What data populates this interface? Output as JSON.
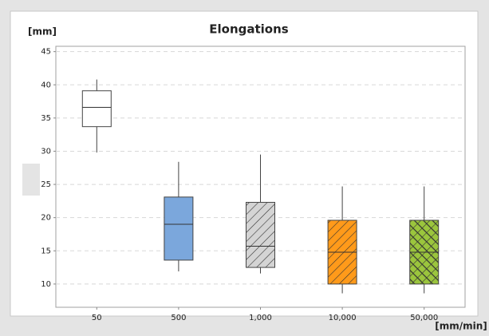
{
  "chart_data": {
    "type": "box",
    "title": "Elongations",
    "y_label": "[mm]",
    "x_label": "[mm/min]",
    "categories": [
      "50",
      "500",
      "1,000",
      "10,000",
      "50,000"
    ],
    "boxes": [
      {
        "min": 29.8,
        "q1": 33.7,
        "median": 36.6,
        "q3": 39.1,
        "max": 40.8
      },
      {
        "min": 11.9,
        "q1": 13.6,
        "median": 19.0,
        "q3": 23.1,
        "max": 28.4
      },
      {
        "min": 11.6,
        "q1": 12.5,
        "median": 15.7,
        "q3": 22.3,
        "max": 29.5
      },
      {
        "min": 8.6,
        "q1": 10.0,
        "median": 14.8,
        "q3": 19.6,
        "max": 24.7
      },
      {
        "min": 8.6,
        "q1": 10.0,
        "median": 14.8,
        "q3": 19.6,
        "max": 24.7
      }
    ],
    "colors": [
      "#ffffff",
      "#7ba7dc",
      "#d4d4d4",
      "#ff9a1a",
      "#9bc53d"
    ],
    "patterns": [
      "none",
      "none",
      "diagonal",
      "diagonal",
      "crosshatch"
    ],
    "ylim": [
      6.5,
      45.8
    ],
    "yticks": [
      10,
      15,
      20,
      25,
      30,
      35,
      40,
      45
    ],
    "grid": true
  }
}
